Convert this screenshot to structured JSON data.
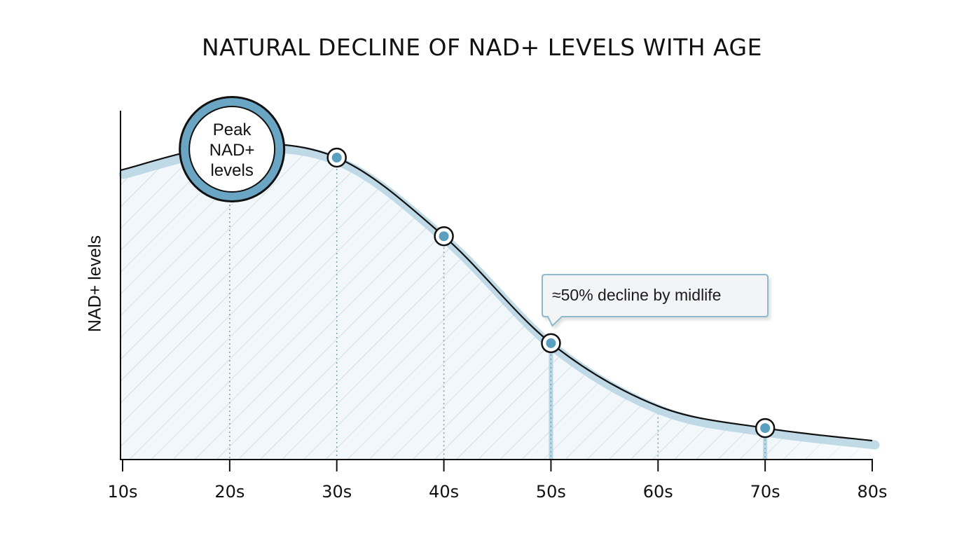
{
  "chart_data": {
    "type": "area",
    "title": "NATURAL DECLINE OF NAD+ LEVELS WITH AGE",
    "xlabel": "",
    "ylabel": "NAD+ levels",
    "categories": [
      "10s",
      "20s",
      "30s",
      "40s",
      "50s",
      "60s",
      "70s",
      "80s"
    ],
    "series": [
      {
        "name": "NAD+ levels",
        "x": [
          10,
          20,
          30,
          40,
          50,
          60,
          70,
          80
        ],
        "values": [
          92,
          100,
          96,
          71,
          37,
          17,
          10,
          6
        ]
      }
    ],
    "highlighted_points": [
      30,
      40,
      50,
      70
    ],
    "guide_lines": [
      20,
      30,
      40,
      50,
      60,
      70
    ],
    "xlim": [
      10,
      80
    ],
    "ylim": [
      0,
      100
    ],
    "y_ticks_shown": false,
    "grid": false,
    "legend": "none",
    "annotations": [
      {
        "type": "circle-label",
        "x": 21,
        "lines": [
          "Peak",
          "NAD+",
          "levels"
        ]
      },
      {
        "type": "callout",
        "x": 50,
        "text": "≈50% decline by midlife"
      }
    ],
    "colors": {
      "accent": "#5a9fc0",
      "accent_light": "#b9d6e3",
      "fill": "#eef6fa",
      "hatch": "#c9d6dc",
      "line": "#111111",
      "guide": "#7aa6bd"
    }
  }
}
